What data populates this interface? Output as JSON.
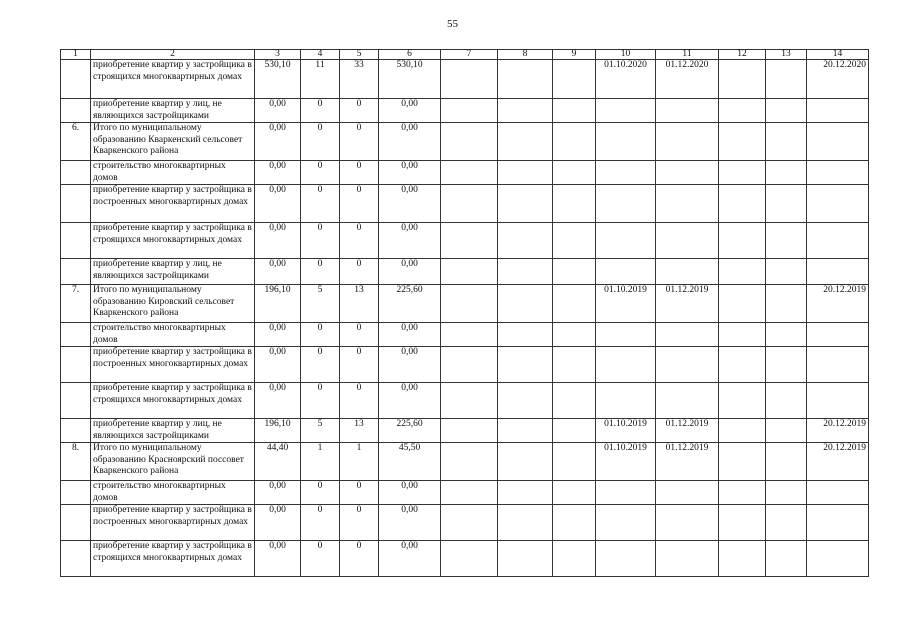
{
  "page_number": "55",
  "headers": [
    "1",
    "2",
    "3",
    "4",
    "5",
    "6",
    "7",
    "8",
    "9",
    "10",
    "11",
    "12",
    "13",
    "14"
  ],
  "rows": [
    {
      "n": "",
      "name": "приобретение квартир у застройщика в строящихся многоквартирных домах",
      "c3": "530,10",
      "c4": "11",
      "c5": "33",
      "c6": "530,10",
      "c10": "01.10.2020",
      "c11": "01.12.2020",
      "c14": "20.12.2020"
    },
    {
      "n": "",
      "name": "приобретение квартир у лиц, не являющихся застройщиками",
      "c3": "0,00",
      "c4": "0",
      "c5": "0",
      "c6": "0,00"
    },
    {
      "n": "6.",
      "name": "Итого по муниципальному образованию Кваркенский сельсовет Кваркенского района",
      "c3": "0,00",
      "c4": "0",
      "c5": "0",
      "c6": "0,00"
    },
    {
      "n": "",
      "name": "строительство многоквартирных домов",
      "c3": "0,00",
      "c4": "0",
      "c5": "0",
      "c6": "0,00"
    },
    {
      "n": "",
      "name": "приобретение квартир у застройщика в построенных многоквартирных домах",
      "c3": "0,00",
      "c4": "0",
      "c5": "0",
      "c6": "0,00"
    },
    {
      "n": "",
      "name": "приобретение квартир у застройщика в строящихся многоквартирных домах",
      "c3": "0,00",
      "c4": "0",
      "c5": "0",
      "c6": "0,00"
    },
    {
      "n": "",
      "name": "приобретение квартир у лиц, не являющихся застройщиками",
      "c3": "0,00",
      "c4": "0",
      "c5": "0",
      "c6": "0,00"
    },
    {
      "n": "7.",
      "name": "Итого по муниципальному образованию Кировский сельсовет Кваркенского района",
      "c3": "196,10",
      "c4": "5",
      "c5": "13",
      "c6": "225,60",
      "c10": "01.10.2019",
      "c11": "01.12.2019",
      "c14": "20.12.2019"
    },
    {
      "n": "",
      "name": "строительство многоквартирных домов",
      "c3": "0,00",
      "c4": "0",
      "c5": "0",
      "c6": "0,00"
    },
    {
      "n": "",
      "name": "приобретение квартир у застройщика в построенных многоквартирных домах",
      "c3": "0,00",
      "c4": "0",
      "c5": "0",
      "c6": "0,00"
    },
    {
      "n": "",
      "name": "приобретение квартир у застройщика в строящихся многоквартирных домах",
      "c3": "0,00",
      "c4": "0",
      "c5": "0",
      "c6": "0,00"
    },
    {
      "n": "",
      "name": "приобретение квартир у лиц, не являющихся застройщиками",
      "c3": "196,10",
      "c4": "5",
      "c5": "13",
      "c6": "225,60",
      "c10": "01.10.2019",
      "c11": "01.12.2019",
      "c14": "20.12.2019"
    },
    {
      "n": "8.",
      "name": "Итого по муниципальному образованию Красноярский поссовет Кваркенского района",
      "c3": "44,40",
      "c4": "1",
      "c5": "1",
      "c6": "45,50",
      "c10": "01.10.2019",
      "c11": "01.12.2019",
      "c14": "20.12.2019"
    },
    {
      "n": "",
      "name": "строительство многоквартирных домов",
      "c3": "0,00",
      "c4": "0",
      "c5": "0",
      "c6": "0,00"
    },
    {
      "n": "",
      "name": "приобретение квартир у застройщика в построенных многоквартирных домах",
      "c3": "0,00",
      "c4": "0",
      "c5": "0",
      "c6": "0,00"
    },
    {
      "n": "",
      "name": "приобретение квартир у застройщика в строящихся многоквартирных домах",
      "c3": "0,00",
      "c4": "0",
      "c5": "0",
      "c6": "0,00"
    }
  ]
}
